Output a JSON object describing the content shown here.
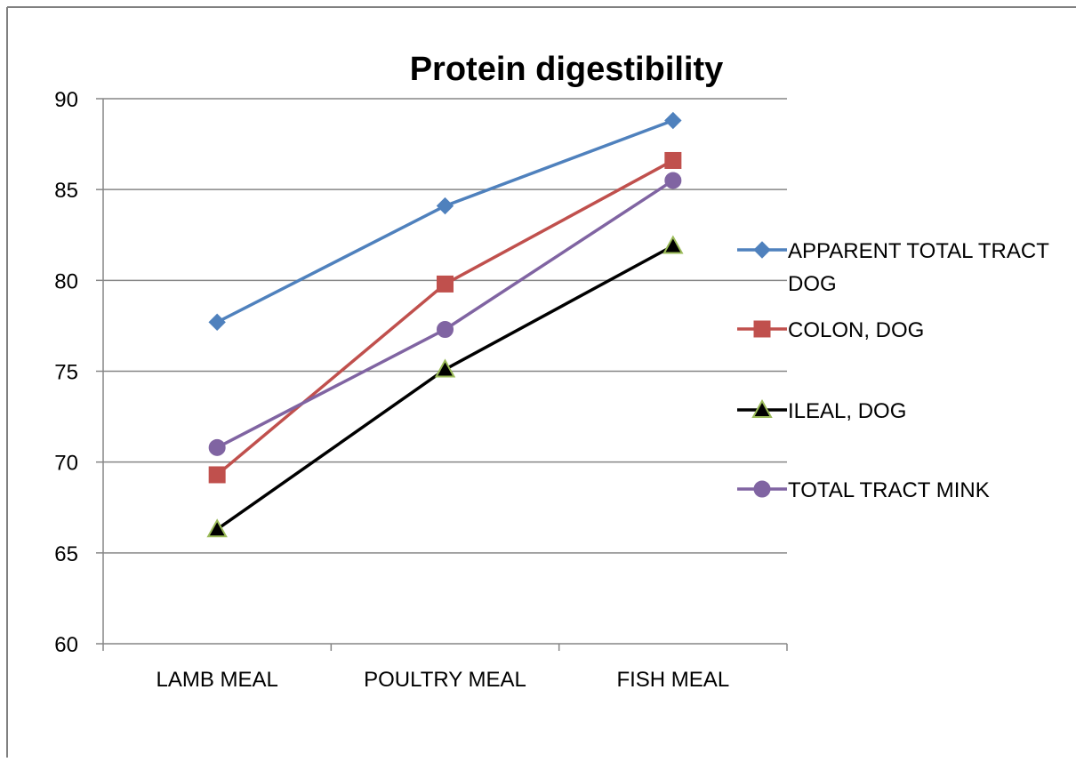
{
  "chart_data": {
    "type": "line",
    "title": "Protein digestibility",
    "xlabel": "",
    "ylabel": "",
    "categories": [
      "LAMB MEAL",
      "POULTRY MEAL",
      "FISH MEAL"
    ],
    "ylim": [
      60,
      90
    ],
    "yticks": [
      "60",
      "65",
      "70",
      "75",
      "80",
      "85",
      "90"
    ],
    "grid": true,
    "legend_position": "right",
    "series": [
      {
        "name": "APPARENT TOTAL TRACT DOG",
        "legend_lines": [
          "APPARENT TOTAL TRACT",
          "DOG"
        ],
        "values": [
          77.7,
          84.1,
          88.8
        ],
        "color": "#4f81bd",
        "marker": "diamond"
      },
      {
        "name": "COLON, DOG",
        "legend_lines": [
          "COLON, DOG"
        ],
        "values": [
          69.3,
          79.8,
          86.6
        ],
        "color": "#c0504d",
        "marker": "square"
      },
      {
        "name": "ILEAL, DOG",
        "legend_lines": [
          "ILEAL, DOG"
        ],
        "values": [
          66.3,
          75.1,
          81.9
        ],
        "color": "#000000",
        "marker_fill": "#000000",
        "marker_stroke": "#9bbb59",
        "marker": "triangle"
      },
      {
        "name": "TOTAL TRACT MINK",
        "legend_lines": [
          "TOTAL TRACT MINK"
        ],
        "values": [
          70.8,
          77.3,
          85.5
        ],
        "color": "#8064a2",
        "marker": "circle"
      }
    ]
  }
}
